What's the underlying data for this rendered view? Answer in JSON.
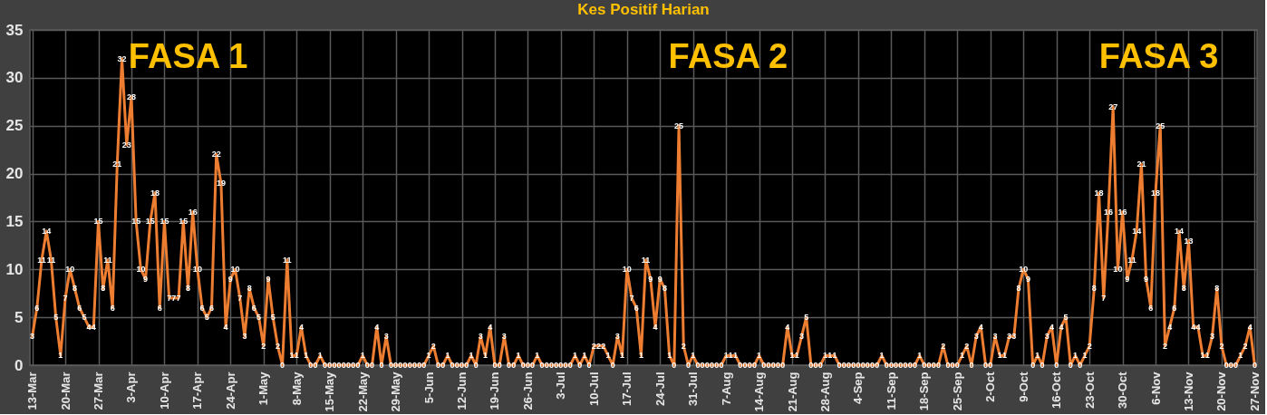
{
  "chart_data": {
    "type": "line",
    "title": "Kes Positif Harian",
    "categories": [
      "13-Mar",
      null,
      null,
      null,
      null,
      null,
      null,
      "20-Mar",
      null,
      null,
      null,
      null,
      null,
      null,
      "27-Mar",
      null,
      null,
      null,
      null,
      null,
      null,
      "3-Apr",
      null,
      null,
      null,
      null,
      null,
      null,
      "10-Apr",
      null,
      null,
      null,
      null,
      null,
      null,
      "17-Apr",
      null,
      null,
      null,
      null,
      null,
      null,
      "24-Apr",
      null,
      null,
      null,
      null,
      null,
      null,
      "1-May",
      null,
      null,
      null,
      null,
      null,
      null,
      "8-May",
      null,
      null,
      null,
      null,
      null,
      null,
      "15-May",
      null,
      null,
      null,
      null,
      null,
      null,
      "22-May",
      null,
      null,
      null,
      null,
      null,
      null,
      "29-May",
      null,
      null,
      null,
      null,
      null,
      null,
      "5-Jun",
      null,
      null,
      null,
      null,
      null,
      null,
      "12-Jun",
      null,
      null,
      null,
      null,
      null,
      null,
      "19-Jun",
      null,
      null,
      null,
      null,
      null,
      null,
      "26-Jun",
      null,
      null,
      null,
      null,
      null,
      null,
      "3-Jul",
      null,
      null,
      null,
      null,
      null,
      null,
      "10-Jul",
      null,
      null,
      null,
      null,
      null,
      null,
      "17-Jul",
      null,
      null,
      null,
      null,
      null,
      null,
      "24-Jul",
      null,
      null,
      null,
      null,
      null,
      null,
      "31-Jul",
      null,
      null,
      null,
      null,
      null,
      null,
      "7-Aug",
      null,
      null,
      null,
      null,
      null,
      null,
      "14-Aug",
      null,
      null,
      null,
      null,
      null,
      null,
      "21-Aug",
      null,
      null,
      null,
      null,
      null,
      null,
      "28-Aug",
      null,
      null,
      null,
      null,
      null,
      null,
      "4-Sep",
      null,
      null,
      null,
      null,
      null,
      null,
      "11-Sep",
      null,
      null,
      null,
      null,
      null,
      null,
      "18-Sep",
      null,
      null,
      null,
      null,
      null,
      null,
      "25-Sep",
      null,
      null,
      null,
      null,
      null,
      null,
      "2-Oct",
      null,
      null,
      null,
      null,
      null,
      null,
      "9-Oct",
      null,
      null,
      null,
      null,
      null,
      null,
      "16-Oct",
      null,
      null,
      null,
      null,
      null,
      null,
      "23-Oct",
      null,
      null,
      null,
      null,
      null,
      null,
      "30-Oct",
      null,
      null,
      null,
      null,
      null,
      null,
      "6-Nov",
      null,
      null,
      null,
      null,
      null,
      null,
      "13-Nov",
      null,
      null,
      null,
      null,
      null,
      null,
      "20-Nov",
      null,
      null,
      null,
      null,
      null,
      null,
      "27-Nov"
    ],
    "series": [
      {
        "color": "#ed7d31",
        "values": [
          3,
          6,
          11,
          14,
          11,
          5,
          1,
          7,
          10,
          8,
          6,
          5,
          4,
          4,
          15,
          8,
          11,
          6,
          21,
          32,
          23,
          28,
          15,
          10,
          9,
          15,
          18,
          6,
          15,
          7,
          7,
          7,
          15,
          8,
          16,
          10,
          6,
          5,
          6,
          22,
          19,
          4,
          9,
          10,
          7,
          3,
          8,
          6,
          5,
          2,
          9,
          5,
          2,
          0,
          11,
          1,
          1,
          4,
          1,
          0,
          0,
          1,
          0,
          0,
          0,
          0,
          0,
          0,
          0,
          0,
          1,
          0,
          0,
          4,
          0,
          3,
          0,
          0,
          0,
          0,
          0,
          0,
          0,
          0,
          1,
          2,
          0,
          0,
          1,
          0,
          0,
          0,
          0,
          1,
          0,
          3,
          1,
          4,
          0,
          0,
          3,
          0,
          0,
          1,
          0,
          0,
          0,
          1,
          0,
          0,
          0,
          0,
          0,
          0,
          0,
          1,
          0,
          1,
          0,
          2,
          2,
          2,
          1,
          0,
          3,
          1,
          10,
          7,
          6,
          1,
          11,
          9,
          4,
          9,
          8,
          1,
          0,
          25,
          2,
          0,
          1,
          0,
          0,
          0,
          0,
          0,
          0,
          1,
          1,
          1,
          0,
          0,
          0,
          0,
          1,
          0,
          0,
          0,
          0,
          0,
          4,
          1,
          1,
          3,
          5,
          0,
          0,
          0,
          1,
          1,
          1,
          0,
          0,
          0,
          0,
          0,
          0,
          0,
          0,
          0,
          1,
          0,
          0,
          0,
          0,
          0,
          0,
          0,
          1,
          0,
          0,
          0,
          0,
          2,
          0,
          0,
          0,
          1,
          2,
          0,
          3,
          4,
          0,
          0,
          3,
          1,
          1,
          3,
          3,
          8,
          10,
          9,
          0,
          1,
          0,
          3,
          4,
          0,
          4,
          5,
          0,
          1,
          0,
          1,
          2,
          8,
          18,
          7,
          16,
          27,
          10,
          16,
          9,
          11,
          14,
          21,
          9,
          6,
          18,
          25,
          2,
          4,
          6,
          14,
          8,
          13,
          4,
          4,
          1,
          1,
          3,
          8,
          2,
          0,
          0,
          0,
          1,
          2,
          4,
          0
        ]
      }
    ],
    "ylim": [
      0,
      35
    ],
    "yticks": [
      0,
      5,
      10,
      15,
      20,
      25,
      30,
      35
    ],
    "grid": true,
    "data_labels": true,
    "annotations": [
      "FASA 1",
      "FASA 2",
      "FASA 3"
    ]
  }
}
